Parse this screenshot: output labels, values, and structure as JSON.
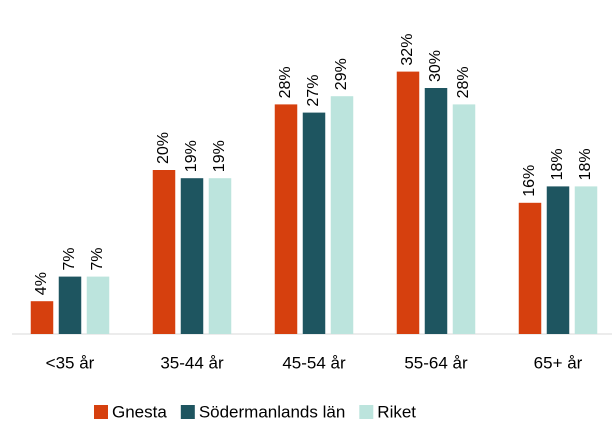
{
  "chart_data": {
    "type": "bar",
    "categories": [
      "<35 år",
      "35-44 år",
      "45-54 år",
      "55-64 år",
      "65+ år"
    ],
    "series": [
      {
        "name": "Gnesta",
        "color": "#d6400e",
        "label_color": "#d6400e",
        "values": [
          4,
          20,
          28,
          32,
          16
        ],
        "value_labels": [
          "4%",
          "20%",
          "28%",
          "32%",
          "16%"
        ]
      },
      {
        "name": "Södermanlands län",
        "color": "#1e5560",
        "label_color": "#1e5560",
        "values": [
          7,
          19,
          27,
          30,
          18
        ],
        "value_labels": [
          "7%",
          "19%",
          "27%",
          "30%",
          "18%"
        ]
      },
      {
        "name": "Riket",
        "color": "#bce4dd",
        "label_color": "#4e8b8b",
        "values": [
          7,
          19,
          29,
          28,
          18
        ],
        "value_labels": [
          "7%",
          "19%",
          "29%",
          "28%",
          "18%"
        ]
      }
    ]
  }
}
